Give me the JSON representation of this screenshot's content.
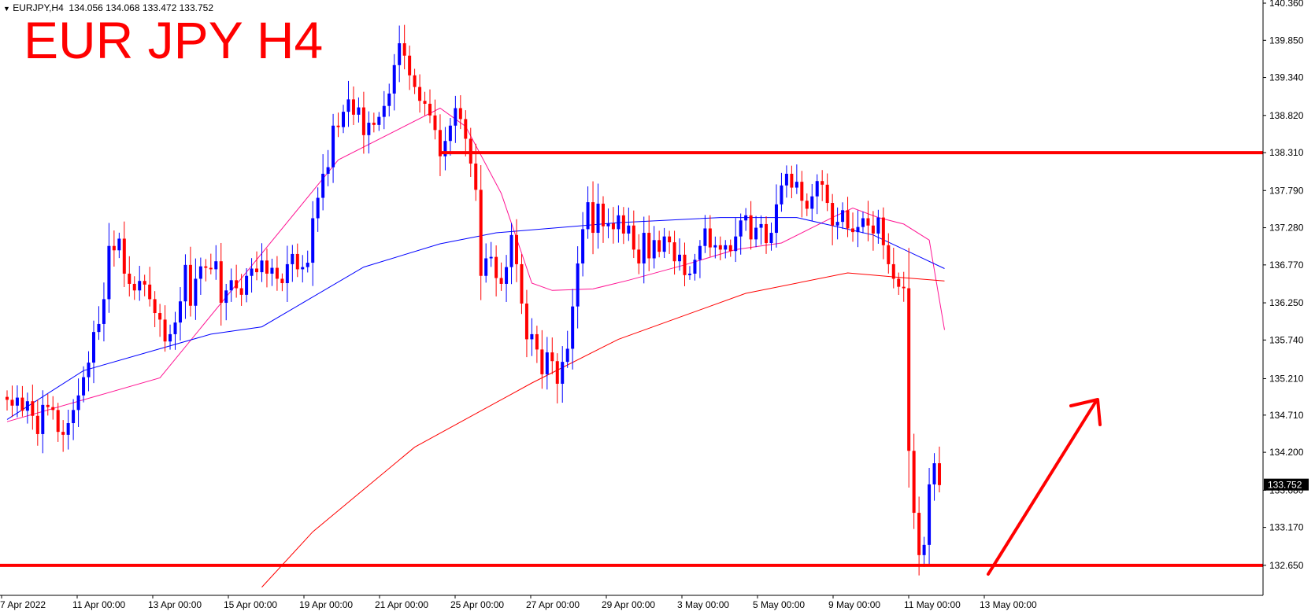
{
  "header": {
    "symbol": "EURJPY,H4",
    "open": "134.056",
    "high": "134.068",
    "low": "133.472",
    "close": "133.752"
  },
  "big_title": "EUR JPY H4",
  "colors": {
    "bull": "#0000ff",
    "bear": "#ff0000",
    "ma_fast": "#ff1493",
    "ma_mid": "#0000ff",
    "ma_slow": "#ff0000",
    "annotation": "#ff0000",
    "price_tag_bg": "#000000"
  },
  "chart_data": {
    "type": "candlestick",
    "symbol": "EURJPY",
    "timeframe": "H4",
    "y_axis": {
      "min": 132.4,
      "max": 140.36,
      "ticks": [
        "140.360",
        "139.850",
        "139.340",
        "138.820",
        "138.310",
        "137.790",
        "137.280",
        "136.770",
        "136.250",
        "135.740",
        "135.210",
        "134.710",
        "134.200",
        "133.680",
        "133.170",
        "132.650"
      ],
      "current_price": "133.752"
    },
    "x_axis": {
      "labels": [
        "7 Apr 2022",
        "11 Apr 00:00",
        "13 Apr 00:00",
        "15 Apr 00:00",
        "19 Apr 00:00",
        "21 Apr 00:00",
        "25 Apr 00:00",
        "27 Apr 00:00",
        "29 Apr 00:00",
        "3 May 00:00",
        "5 May 00:00",
        "9 May 00:00",
        "11 May 00:00",
        "13 May 00:00"
      ]
    },
    "closes": [
      134.92,
      134.84,
      134.95,
      134.77,
      134.9,
      134.7,
      134.45,
      134.85,
      134.82,
      134.78,
      134.48,
      134.44,
      134.6,
      134.78,
      134.98,
      135.23,
      135.43,
      135.85,
      135.96,
      136.3,
      137.03,
      136.97,
      137.13,
      136.65,
      136.51,
      136.42,
      136.55,
      136.5,
      136.3,
      136.11,
      136.02,
      135.72,
      135.82,
      135.98,
      136.27,
      136.77,
      136.21,
      136.58,
      136.75,
      136.73,
      136.71,
      136.82,
      136.25,
      136.42,
      136.56,
      136.45,
      136.36,
      136.62,
      136.72,
      136.67,
      136.83,
      136.65,
      136.73,
      136.58,
      136.52,
      136.78,
      136.92,
      136.71,
      136.74,
      136.8,
      137.41,
      137.69,
      138.02,
      138.11,
      138.68,
      138.66,
      138.87,
      139.04,
      138.83,
      138.93,
      138.55,
      138.72,
      138.69,
      138.8,
      138.95,
      139.12,
      139.51,
      139.81,
      139.64,
      139.37,
      139.21,
      139.02,
      138.98,
      138.82,
      138.62,
      138.26,
      138.47,
      138.68,
      138.92,
      138.77,
      138.5,
      138.16,
      137.8,
      136.62,
      136.86,
      136.88,
      136.59,
      136.51,
      136.74,
      137.18,
      136.78,
      136.24,
      135.75,
      135.82,
      135.61,
      135.27,
      135.57,
      135.45,
      135.14,
      135.44,
      135.62,
      136.2,
      136.79,
      137.26,
      137.63,
      137.21,
      137.61,
      137.3,
      137.34,
      137.26,
      137.45,
      137.2,
      137.31,
      136.98,
      136.79,
      137.21,
      136.86,
      137.11,
      136.95,
      137.16,
      137.08,
      136.82,
      136.91,
      136.63,
      136.65,
      136.84,
      137.03,
      137.27,
      137.01,
      137.04,
      136.98,
      137.04,
      136.96,
      137.16,
      137.38,
      137.45,
      137.12,
      137.28,
      137.33,
      137.07,
      137.21,
      137.6,
      137.86,
      138.02,
      137.83,
      137.91,
      137.65,
      137.54,
      137.71,
      137.92,
      137.87,
      137.62,
      137.31,
      137.36,
      137.52,
      137.27,
      137.22,
      137.29,
      137.41,
      137.31,
      137.2,
      137.42,
      137.04,
      136.78,
      136.58,
      136.47,
      136.45,
      134.22,
      133.37,
      132.79,
      132.93,
      133.76,
      134.05,
      133.75
    ],
    "moving_averages": [
      {
        "color": "#ff1493",
        "values": [
          [
            0,
            134.62
          ],
          [
            30,
            135.22
          ],
          [
            65,
            138.21
          ],
          [
            85,
            138.92
          ],
          [
            90,
            138.67
          ],
          [
            97,
            137.75
          ],
          [
            103,
            136.52
          ],
          [
            107,
            136.42
          ],
          [
            115,
            136.44
          ],
          [
            122,
            136.56
          ],
          [
            133,
            136.77
          ],
          [
            143,
            136.98
          ],
          [
            152,
            137.07
          ],
          [
            162,
            137.42
          ],
          [
            166,
            137.55
          ],
          [
            171,
            137.42
          ],
          [
            176,
            137.33
          ],
          [
            181,
            137.11
          ],
          [
            184,
            135.88
          ]
        ]
      },
      {
        "color": "#0000ff",
        "values": [
          [
            0,
            134.65
          ],
          [
            15,
            135.32
          ],
          [
            40,
            135.82
          ],
          [
            50,
            135.92
          ],
          [
            70,
            136.74
          ],
          [
            85,
            137.06
          ],
          [
            96,
            137.21
          ],
          [
            120,
            137.35
          ],
          [
            140,
            137.42
          ],
          [
            155,
            137.42
          ],
          [
            170,
            137.18
          ],
          [
            184,
            136.72
          ]
        ]
      },
      {
        "color": "#ff0000",
        "values": [
          [
            50,
            132.35
          ],
          [
            60,
            133.11
          ],
          [
            80,
            134.27
          ],
          [
            103,
            135.15
          ],
          [
            120,
            135.75
          ],
          [
            145,
            136.38
          ],
          [
            165,
            136.66
          ],
          [
            175,
            136.6
          ],
          [
            184,
            136.55
          ]
        ]
      }
    ],
    "annotations": {
      "resistance": 138.31,
      "support": 132.65,
      "arrow": "up"
    }
  }
}
